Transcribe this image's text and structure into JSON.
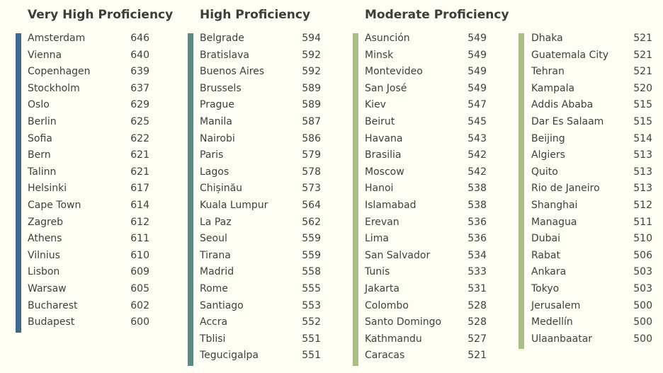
{
  "chart_data": {
    "type": "table",
    "groups": [
      {
        "name": "Very High Proficiency",
        "color": "#3e6a90",
        "columns": [
          [
            [
              "Amsterdam",
              646
            ],
            [
              "Vienna",
              640
            ],
            [
              "Copenhagen",
              639
            ],
            [
              "Stockholm",
              637
            ],
            [
              "Oslo",
              629
            ],
            [
              "Berlin",
              625
            ],
            [
              "Sofia",
              622
            ],
            [
              "Bern",
              621
            ],
            [
              "Talinn",
              621
            ],
            [
              "Helsinki",
              617
            ],
            [
              "Cape Town",
              614
            ],
            [
              "Zagreb",
              612
            ],
            [
              "Athens",
              611
            ],
            [
              "Vilnius",
              610
            ],
            [
              "Lisbon",
              609
            ],
            [
              "Warsaw",
              605
            ],
            [
              "Bucharest",
              602
            ],
            [
              "Budapest",
              600
            ]
          ]
        ]
      },
      {
        "name": "High Proficiency",
        "color": "#5f8a82",
        "columns": [
          [
            [
              "Belgrade",
              594
            ],
            [
              "Bratislava",
              592
            ],
            [
              "Buenos Aires",
              592
            ],
            [
              "Brussels",
              589
            ],
            [
              "Prague",
              589
            ],
            [
              "Manila",
              587
            ],
            [
              "Nairobi",
              586
            ],
            [
              "Paris",
              579
            ],
            [
              "Lagos",
              578
            ],
            [
              "Chișinău",
              573
            ],
            [
              "Kuala Lumpur",
              564
            ],
            [
              "La Paz",
              562
            ],
            [
              "Seoul",
              559
            ],
            [
              "Tirana",
              559
            ],
            [
              "Madrid",
              558
            ],
            [
              "Rome",
              555
            ],
            [
              "Santiago",
              553
            ],
            [
              "Accra",
              552
            ],
            [
              "Tblisi",
              551
            ],
            [
              "Tegucigalpa",
              551
            ]
          ]
        ]
      },
      {
        "name": "Moderate Proficiency",
        "color": "#a9be86",
        "columns": [
          [
            [
              "Asunción",
              549
            ],
            [
              "Minsk",
              549
            ],
            [
              "Montevideo",
              549
            ],
            [
              "San José",
              549
            ],
            [
              "Kiev",
              547
            ],
            [
              "Beirut",
              545
            ],
            [
              "Havana",
              543
            ],
            [
              "Brasilia",
              542
            ],
            [
              "Moscow",
              542
            ],
            [
              "Hanoi",
              538
            ],
            [
              "Islamabad",
              538
            ],
            [
              "Erevan",
              536
            ],
            [
              "Lima",
              536
            ],
            [
              "San Salvador",
              534
            ],
            [
              "Tunis",
              533
            ],
            [
              "Jakarta",
              531
            ],
            [
              "Colombo",
              528
            ],
            [
              "Santo Domingo",
              528
            ],
            [
              "Kathmandu",
              527
            ],
            [
              "Caracas",
              521
            ]
          ],
          [
            [
              "Dhaka",
              521
            ],
            [
              "Guatemala City",
              521
            ],
            [
              "Tehran",
              521
            ],
            [
              "Kampala",
              520
            ],
            [
              "Addis Ababa",
              515
            ],
            [
              "Dar Es Salaam",
              515
            ],
            [
              "Beijing",
              514
            ],
            [
              "Algiers",
              513
            ],
            [
              "Quito",
              513
            ],
            [
              "Rio de Janeiro",
              513
            ],
            [
              "Shanghai",
              512
            ],
            [
              "Managua",
              511
            ],
            [
              "Dubai",
              510
            ],
            [
              "Rabat",
              506
            ],
            [
              "Ankara",
              503
            ],
            [
              "Tokyo",
              503
            ],
            [
              "Jerusalem",
              500
            ],
            [
              "Medellín",
              500
            ],
            [
              "Ulaanbaatar",
              500
            ]
          ]
        ]
      }
    ]
  }
}
